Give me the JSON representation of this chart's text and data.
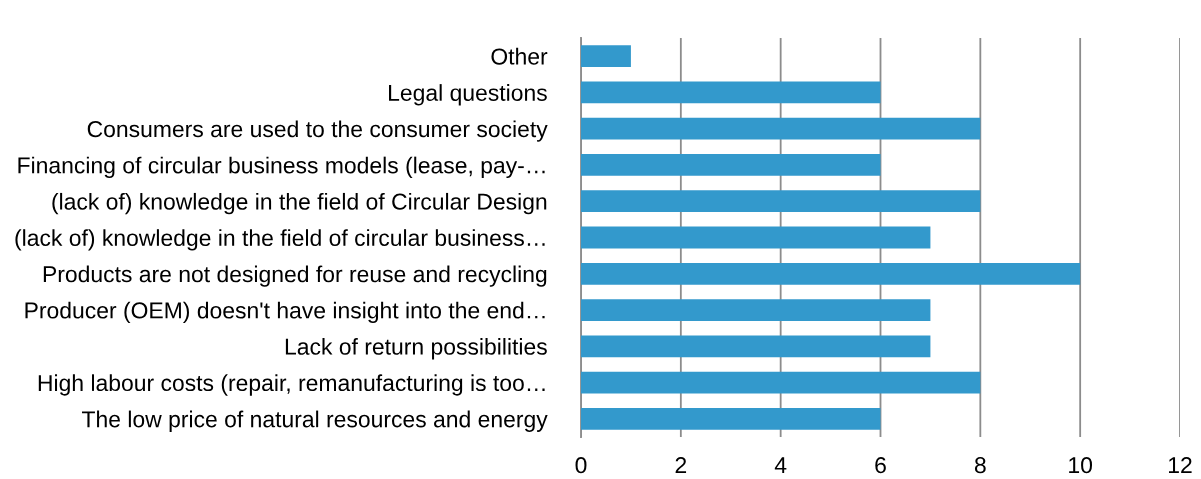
{
  "chart_data": {
    "type": "bar",
    "orientation": "horizontal",
    "categories": [
      "Other",
      "Legal questions",
      "Consumers are used to the consumer society",
      "Financing of circular business models (lease, pay-…",
      "(lack of) knowledge in the field of Circular Design",
      "(lack of) knowledge in the field of circular business…",
      "Products are not designed for reuse and recycling",
      "Producer (OEM) doesn't have insight into the end…",
      "Lack of return possibilities",
      "High labour costs (repair, remanufacturing is too…",
      "The low price of natural resources and energy"
    ],
    "values": [
      1,
      6,
      8,
      6,
      8,
      7,
      10,
      7,
      7,
      8,
      6
    ],
    "color": "#3399cc",
    "xlim": [
      0,
      12
    ],
    "xticks": [
      0,
      2,
      4,
      6,
      8,
      10,
      12
    ],
    "grid": "x"
  }
}
